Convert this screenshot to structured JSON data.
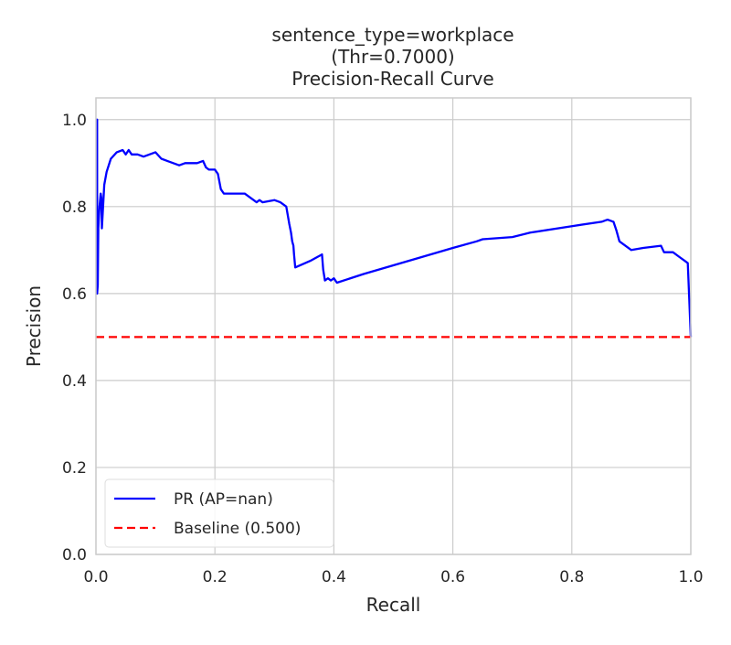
{
  "chart_data": {
    "type": "line",
    "title_lines": [
      "sentence_type=workplace",
      "(Thr=0.7000)",
      "Precision-Recall Curve"
    ],
    "xlabel": "Recall",
    "ylabel": "Precision",
    "xlim": [
      0,
      1
    ],
    "ylim": [
      0,
      1.05
    ],
    "grid": true,
    "legend_position": "lower-left",
    "xticks": [
      {
        "value": 0.0,
        "label": "0.0"
      },
      {
        "value": 0.2,
        "label": "0.2"
      },
      {
        "value": 0.4,
        "label": "0.4"
      },
      {
        "value": 0.6,
        "label": "0.6"
      },
      {
        "value": 0.8,
        "label": "0.8"
      },
      {
        "value": 1.0,
        "label": "1.0"
      }
    ],
    "yticks": [
      {
        "value": 0.0,
        "label": "0.0"
      },
      {
        "value": 0.2,
        "label": "0.2"
      },
      {
        "value": 0.4,
        "label": "0.4"
      },
      {
        "value": 0.6,
        "label": "0.6"
      },
      {
        "value": 0.8,
        "label": "0.8"
      },
      {
        "value": 1.0,
        "label": "1.0"
      }
    ],
    "series": [
      {
        "name": "PR (AP=nan)",
        "color": "#0000ff",
        "style": "solid",
        "x": [
          0.0,
          0.002,
          0.002,
          0.003,
          0.004,
          0.005,
          0.006,
          0.008,
          0.009,
          0.01,
          0.012,
          0.014,
          0.018,
          0.025,
          0.035,
          0.045,
          0.05,
          0.055,
          0.06,
          0.07,
          0.08,
          0.09,
          0.1,
          0.11,
          0.12,
          0.13,
          0.14,
          0.15,
          0.16,
          0.17,
          0.18,
          0.185,
          0.19,
          0.2,
          0.205,
          0.21,
          0.215,
          0.22,
          0.23,
          0.25,
          0.26,
          0.27,
          0.275,
          0.28,
          0.3,
          0.31,
          0.32,
          0.325,
          0.328,
          0.33,
          0.332,
          0.333,
          0.335,
          0.36,
          0.38,
          0.382,
          0.385,
          0.39,
          0.395,
          0.4,
          0.405,
          0.45,
          0.5,
          0.55,
          0.6,
          0.64,
          0.65,
          0.7,
          0.73,
          0.8,
          0.85,
          0.86,
          0.87,
          0.875,
          0.88,
          0.9,
          0.92,
          0.95,
          0.955,
          0.97,
          0.98,
          0.99,
          0.995,
          1.0
        ],
        "y": [
          1.0,
          1.0,
          0.6,
          0.62,
          0.75,
          0.78,
          0.8,
          0.83,
          0.82,
          0.75,
          0.8,
          0.85,
          0.88,
          0.91,
          0.925,
          0.93,
          0.92,
          0.93,
          0.92,
          0.92,
          0.915,
          0.92,
          0.925,
          0.91,
          0.905,
          0.9,
          0.895,
          0.9,
          0.9,
          0.9,
          0.905,
          0.89,
          0.885,
          0.885,
          0.875,
          0.84,
          0.83,
          0.83,
          0.83,
          0.83,
          0.82,
          0.81,
          0.815,
          0.81,
          0.815,
          0.81,
          0.8,
          0.76,
          0.74,
          0.72,
          0.71,
          0.69,
          0.66,
          0.675,
          0.69,
          0.655,
          0.63,
          0.635,
          0.63,
          0.635,
          0.625,
          0.645,
          0.665,
          0.685,
          0.705,
          0.72,
          0.725,
          0.73,
          0.74,
          0.755,
          0.765,
          0.77,
          0.765,
          0.745,
          0.72,
          0.7,
          0.705,
          0.71,
          0.695,
          0.695,
          0.685,
          0.675,
          0.67,
          0.5
        ]
      },
      {
        "name": "Baseline (0.500)",
        "color": "#ff0000",
        "style": "dashed",
        "x": [
          0,
          1
        ],
        "y": [
          0.5,
          0.5
        ]
      }
    ]
  }
}
